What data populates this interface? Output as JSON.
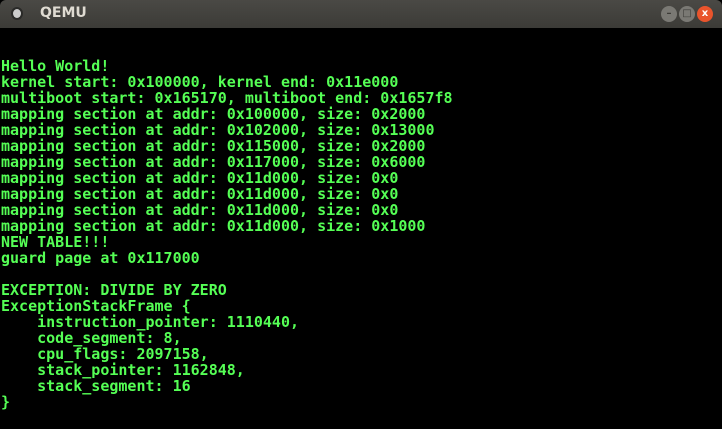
{
  "window": {
    "title": "QEMU",
    "minimize_icon": "minimize-icon",
    "maximize_icon": "maximize-icon",
    "close_icon": "close-icon"
  },
  "terminal": {
    "text_color": "#55ff55",
    "lines": [
      "Hello World!",
      "kernel start: 0x100000, kernel end: 0x11e000",
      "multiboot start: 0x165170, multiboot end: 0x1657f8",
      "mapping section at addr: 0x100000, size: 0x2000",
      "mapping section at addr: 0x102000, size: 0x13000",
      "mapping section at addr: 0x115000, size: 0x2000",
      "mapping section at addr: 0x117000, size: 0x6000",
      "mapping section at addr: 0x11d000, size: 0x0",
      "mapping section at addr: 0x11d000, size: 0x0",
      "mapping section at addr: 0x11d000, size: 0x0",
      "mapping section at addr: 0x11d000, size: 0x1000",
      "NEW TABLE!!!",
      "guard page at 0x117000",
      "",
      "EXCEPTION: DIVIDE BY ZERO",
      "ExceptionStackFrame {",
      "    instruction_pointer: 1110440,",
      "    code_segment: 8,",
      "    cpu_flags: 2097158,",
      "    stack_pointer: 1162848,",
      "    stack_segment: 16",
      "}"
    ]
  }
}
